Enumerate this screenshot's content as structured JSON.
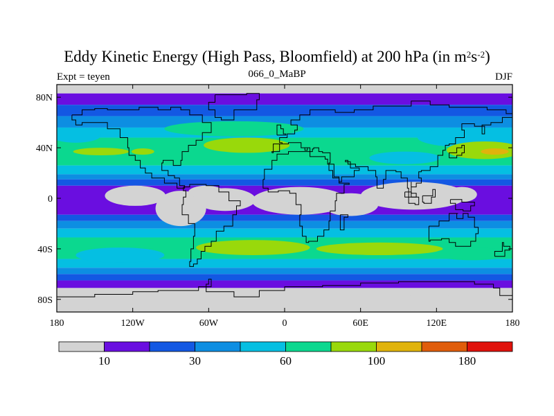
{
  "title_main": "Eddy Kinetic Energy (High Pass, Bloomfield) at 200 hPa (in m",
  "title_sup1": "2",
  "title_mid": "s",
  "title_sup2": "-2",
  "title_end": ")",
  "subtitle_left": "Expt = teyen",
  "subtitle_center": "066_0_MaBP",
  "subtitle_right": "DJF",
  "chart_data": {
    "type": "heatmap",
    "title": "Eddy Kinetic Energy (High Pass, Bloomfield) at 200 hPa (in m^2s^-2)",
    "projection": "cylindrical equidistant",
    "xlim": [
      -180,
      180
    ],
    "ylim": [
      -90,
      90
    ],
    "x_ticks": [
      {
        "value": -180,
        "label": "180"
      },
      {
        "value": -120,
        "label": "120W"
      },
      {
        "value": -60,
        "label": "60W"
      },
      {
        "value": 0,
        "label": "0"
      },
      {
        "value": 60,
        "label": "60E"
      },
      {
        "value": 120,
        "label": "120E"
      },
      {
        "value": 180,
        "label": "180"
      }
    ],
    "y_ticks": [
      {
        "value": 80,
        "label": "80N"
      },
      {
        "value": 40,
        "label": "40N"
      },
      {
        "value": 0,
        "label": "0"
      },
      {
        "value": -40,
        "label": "40S"
      },
      {
        "value": -80,
        "label": "80S"
      }
    ],
    "colorbar": {
      "levels": [
        10,
        20,
        30,
        45,
        60,
        80,
        100,
        130,
        180
      ],
      "colors": [
        "#d3d3d3",
        "#6a0ee0",
        "#1358e3",
        "#0d8ee2",
        "#05bfe2",
        "#0bd88f",
        "#99d90b",
        "#e0b30b",
        "#e05d0b",
        "#e0120b"
      ],
      "labels": [
        {
          "index": 1,
          "text": "10"
        },
        {
          "index": 3,
          "text": "30"
        },
        {
          "index": 5,
          "text": "60"
        },
        {
          "index": 7,
          "text": "100"
        },
        {
          "index": 9,
          "text": "180"
        }
      ]
    },
    "features": [
      "NH storm track maxima over the North Pacific and North Atlantic near 40N (green-yellow, ~80-100)",
      "SH storm track maxima near 40S over the South Atlantic and Indian Ocean (green, ~80-100)",
      "Tropical minima below 10 over the eastern Pacific, South America, Africa and Indonesia",
      "Polar minima below 10 near 80S and 80N"
    ]
  }
}
